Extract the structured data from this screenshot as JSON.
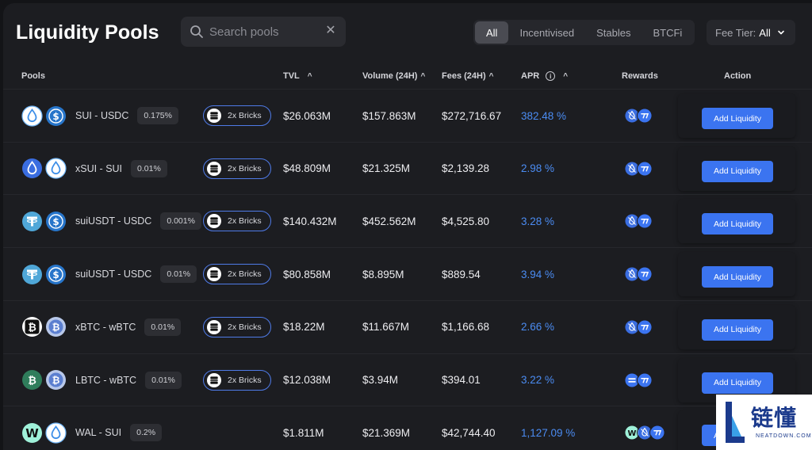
{
  "header": {
    "title": "Liquidity Pools",
    "search_placeholder": "Search pools",
    "filters": [
      "All",
      "Incentivised",
      "Stables",
      "BTCFi"
    ],
    "active_filter": "All",
    "fee_tier_label": "Fee Tier:",
    "fee_tier_value": "All"
  },
  "columns": {
    "pools": "Pools",
    "tvl": "TVL",
    "volume": "Volume (24H)",
    "fees": "Fees (24H)",
    "apr": "APR",
    "rewards": "Rewards",
    "action": "Action"
  },
  "sort_glyph": "^",
  "info_glyph": "i",
  "colors": {
    "accent": "#3b74f0",
    "apr_text": "#4b8cf2",
    "bricks_border": "#4f7be8"
  },
  "pools": [
    {
      "pair": "SUI - USDC",
      "fee": "0.175%",
      "tokens": [
        "sui-icon",
        "usdc-icon"
      ],
      "bricks": "2x Bricks",
      "tvl": "$26.063M",
      "volume": "$157.863M",
      "fees": "$272,716.67",
      "apr": "382.48 %",
      "rewards": [
        "sui-reward-icon",
        "cetus-reward-icon"
      ],
      "action": "Add Liquidity"
    },
    {
      "pair": "xSUI - SUI",
      "fee": "0.01%",
      "tokens": [
        "xsui-icon",
        "sui-icon"
      ],
      "bricks": "2x Bricks",
      "tvl": "$48.809M",
      "volume": "$21.325M",
      "fees": "$2,139.28",
      "apr": "2.98 %",
      "rewards": [
        "sui-reward-icon",
        "cetus-reward-icon"
      ],
      "action": "Add Liquidity"
    },
    {
      "pair": "suiUSDT - USDC",
      "fee": "0.001%",
      "tokens": [
        "usdt-icon",
        "usdc-icon"
      ],
      "bricks": "2x Bricks",
      "tvl": "$140.432M",
      "volume": "$452.562M",
      "fees": "$4,525.80",
      "apr": "3.28 %",
      "rewards": [
        "sui-reward-icon",
        "cetus-reward-icon"
      ],
      "action": "Add Liquidity"
    },
    {
      "pair": "suiUSDT - USDC",
      "fee": "0.01%",
      "tokens": [
        "usdt-icon",
        "usdc-icon"
      ],
      "bricks": "2x Bricks",
      "tvl": "$80.858M",
      "volume": "$8.895M",
      "fees": "$889.54",
      "apr": "3.94 %",
      "rewards": [
        "sui-reward-icon",
        "cetus-reward-icon"
      ],
      "action": "Add Liquidity"
    },
    {
      "pair": "xBTC - wBTC",
      "fee": "0.01%",
      "tokens": [
        "xbtc-icon",
        "wbtc-icon"
      ],
      "bricks": "2x Bricks",
      "tvl": "$18.22M",
      "volume": "$11.667M",
      "fees": "$1,166.68",
      "apr": "2.66 %",
      "rewards": [
        "sui-reward-icon",
        "cetus-reward-icon"
      ],
      "action": "Add Liquidity"
    },
    {
      "pair": "LBTC - wBTC",
      "fee": "0.01%",
      "tokens": [
        "lbtc-icon",
        "wbtc-icon"
      ],
      "bricks": "2x Bricks",
      "tvl": "$12.038M",
      "volume": "$3.94M",
      "fees": "$394.01",
      "apr": "3.22 %",
      "rewards": [
        "lombard-reward-icon",
        "cetus-reward-icon"
      ],
      "action": "Add Liquidity"
    },
    {
      "pair": "WAL - SUI",
      "fee": "0.2%",
      "tokens": [
        "wal-icon",
        "sui-icon"
      ],
      "bricks": "",
      "tvl": "$1.811M",
      "volume": "$21.369M",
      "fees": "$42,744.40",
      "apr": "1,127.09 %",
      "rewards": [
        "wal-reward-icon",
        "sui-reward-icon",
        "cetus-reward-icon"
      ],
      "action": "Add Liquidity"
    }
  ],
  "watermark": {
    "cn": "链懂",
    "en": "NEATDOWN.COM"
  }
}
